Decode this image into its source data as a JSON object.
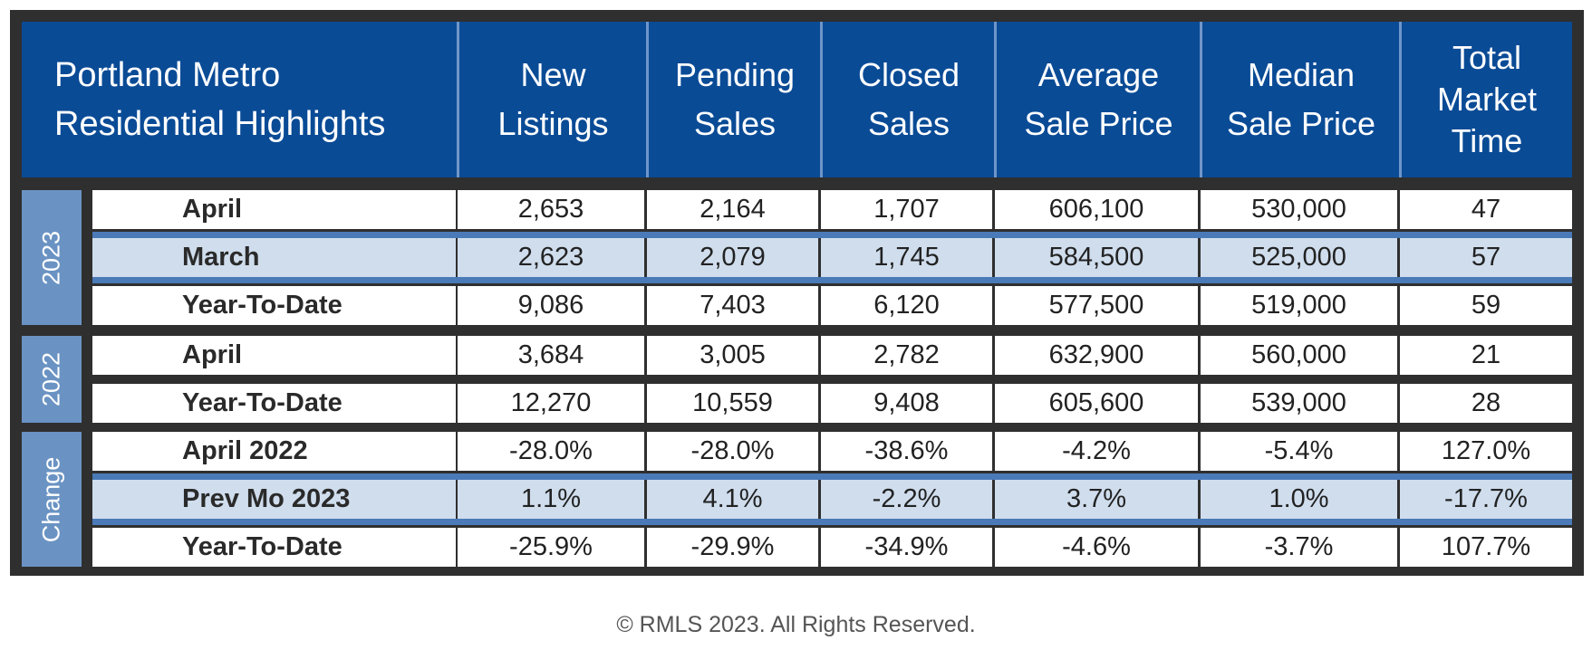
{
  "table": {
    "title": "Portland Metro\nResidential Highlights",
    "columns": [
      "New\nListings",
      "Pending\nSales",
      "Closed\nSales",
      "Average\nSale Price",
      "Median\nSale Price",
      "Total\nMarket\nTime"
    ],
    "groups": [
      {
        "name": "2023",
        "rows": [
          {
            "label": "April",
            "values": [
              "2,653",
              "2,164",
              "1,707",
              "606,100",
              "530,000",
              "47"
            ]
          },
          {
            "label": "March",
            "values": [
              "2,623",
              "2,079",
              "1,745",
              "584,500",
              "525,000",
              "57"
            ]
          },
          {
            "label": "Year-To-Date",
            "values": [
              "9,086",
              "7,403",
              "6,120",
              "577,500",
              "519,000",
              "59"
            ]
          }
        ]
      },
      {
        "name": "2022",
        "rows": [
          {
            "label": "April",
            "values": [
              "3,684",
              "3,005",
              "2,782",
              "632,900",
              "560,000",
              "21"
            ]
          },
          {
            "label": "Year-To-Date",
            "values": [
              "12,270",
              "10,559",
              "9,408",
              "605,600",
              "539,000",
              "28"
            ]
          }
        ]
      },
      {
        "name": "Change",
        "rows": [
          {
            "label": "April 2022",
            "values": [
              "-28.0%",
              "-28.0%",
              "-38.6%",
              "-4.2%",
              "-5.4%",
              "127.0%"
            ]
          },
          {
            "label": "Prev Mo 2023",
            "values": [
              "1.1%",
              "4.1%",
              "-2.2%",
              "3.7%",
              "1.0%",
              "-17.7%"
            ]
          },
          {
            "label": "Year-To-Date",
            "values": [
              "-25.9%",
              "-29.9%",
              "-34.9%",
              "-4.6%",
              "-3.7%",
              "107.7%"
            ]
          }
        ]
      }
    ]
  },
  "footer": "© RMLS 2023. All Rights Reserved.",
  "colors": {
    "header_bg": "#0a4b96",
    "group_bg": "#6a93c3",
    "row_highlight": "#cfdded",
    "row_separator": "#4a7ab8",
    "frame": "#2f2f2f"
  }
}
